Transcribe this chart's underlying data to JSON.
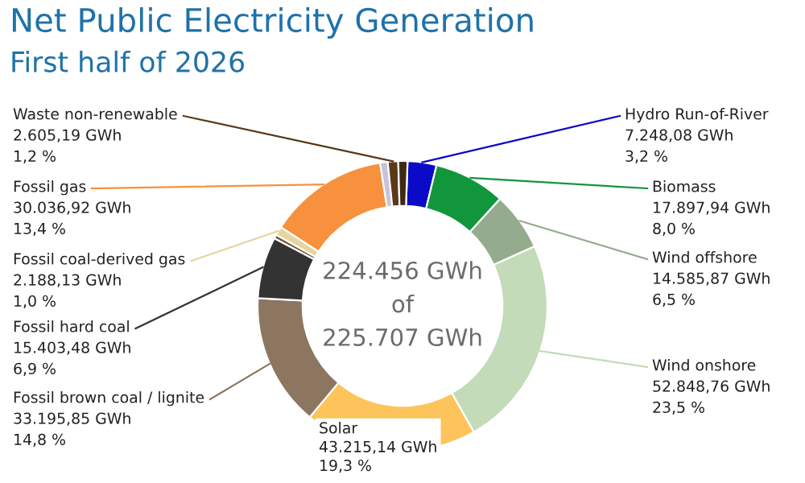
{
  "chart_data": {
    "type": "donut",
    "title": "Net Public Electricity Generation",
    "subtitle": "First half of 2026",
    "categories": [
      "Hydro Run-of-River",
      "Biomass",
      "Wind offshore",
      "Wind onshore",
      "Solar",
      "Fossil brown coal / lignite",
      "Fossil hard coal",
      null,
      "Fossil coal-derived gas",
      "Fossil gas",
      null,
      "Waste non-renewable",
      null
    ],
    "values": [
      7248.08,
      17897.94,
      14585.87,
      52848.76,
      43215.14,
      33195.85,
      15403.48,
      1000,
      2188.13,
      30036.92,
      1900,
      2605.19,
      2300
    ],
    "value_labels": [
      "7.248,08 GWh\n3,2 %",
      "17.897,94 GWh\n8,0 %",
      "14.585,87 GWh\n6,5 %",
      "52.848,76 GWh\n23,5 %",
      "43.215,14 GWh\n19,3 %",
      "33.195,85 GWh\n14,8 %",
      "15.403,48 GWh\n6,9 %",
      null,
      "2.188,13 GWh\n1,0 %",
      "30.036,92 GWh\n13,4 %",
      null,
      "2.605,19 GWh\n1,2 %",
      null
    ],
    "colors": [
      "#0a0ac8",
      "#12963c",
      "#94ab8e",
      "#c3dbb8",
      "#fcc45a",
      "#8c7660",
      "#333333",
      "#6e5236",
      "#e6d49e",
      "#f7913d",
      "#c8c2d8",
      "#5a3a1a",
      "#3e2a12"
    ],
    "annotations": [
      "224.456 GWh\nof\n225.707 GWh"
    ]
  }
}
